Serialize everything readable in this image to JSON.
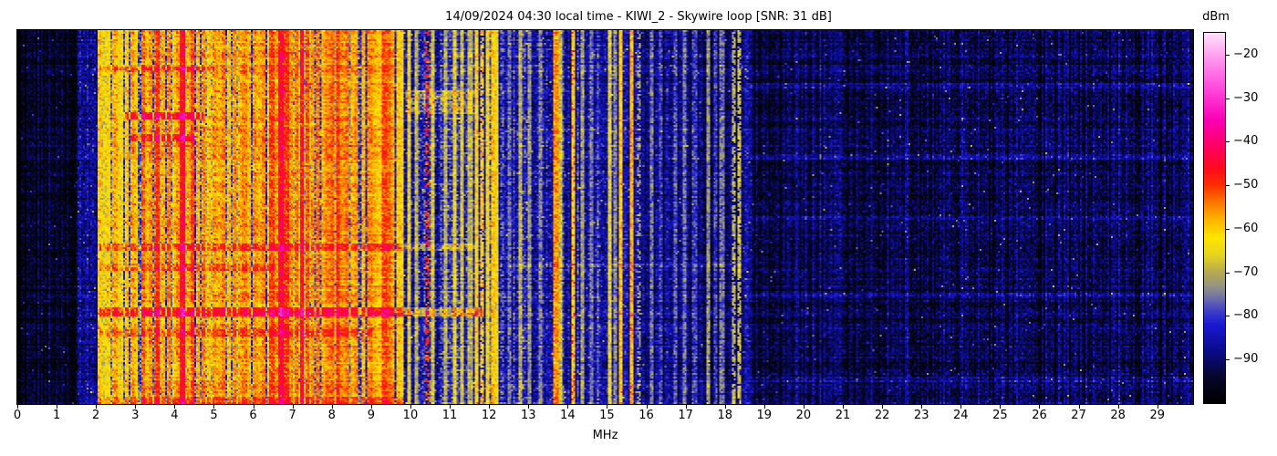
{
  "header": {
    "title": "14/09/2024 04:30 local time - KIWI_2 - Skywire loop [SNR: 31 dB]"
  },
  "x_axis": {
    "label": "MHz",
    "tick_values": [
      0,
      1,
      2,
      3,
      4,
      5,
      6,
      7,
      8,
      9,
      10,
      11,
      12,
      13,
      14,
      15,
      16,
      17,
      18,
      19,
      20,
      21,
      22,
      23,
      24,
      25,
      26,
      27,
      28,
      29
    ],
    "range_mhz": [
      0,
      29.91
    ]
  },
  "colorbar": {
    "unit_label": "dBm",
    "tick_values": [
      -20,
      -30,
      -40,
      -50,
      -60,
      -70,
      -80,
      -90
    ],
    "tick_labels": [
      "−20",
      "−30",
      "−40",
      "−50",
      "−60",
      "−70",
      "−80",
      "−90"
    ],
    "vmin": -100,
    "vmax": -15
  },
  "chart_data": {
    "type": "heatmap",
    "title": "14/09/2024 04:30 local time - KIWI_2 - Skywire loop [SNR: 31 dB]",
    "xlabel": "MHz",
    "value_unit": "dBm",
    "x_range_mhz": [
      0,
      29.91
    ],
    "value_range_dbm": [
      -100,
      -15
    ],
    "legend_position": "right-colorbar",
    "grid": false,
    "colormap": [
      [
        -100,
        "#000000"
      ],
      [
        -94,
        "#06062a"
      ],
      [
        -88,
        "#0a0a8c"
      ],
      [
        -82,
        "#1919d2"
      ],
      [
        -79,
        "#3c3cc8"
      ],
      [
        -76,
        "#6e6eaa"
      ],
      [
        -73,
        "#96967e"
      ],
      [
        -70,
        "#b4aa50"
      ],
      [
        -66,
        "#e6d41e"
      ],
      [
        -62,
        "#ffe600"
      ],
      [
        -58,
        "#ffb400"
      ],
      [
        -54,
        "#ff7800"
      ],
      [
        -50,
        "#ff2d00"
      ],
      [
        -46,
        "#ff0a1e"
      ],
      [
        -41,
        "#ff0064"
      ],
      [
        -35,
        "#fa00b4"
      ],
      [
        -28,
        "#ff46dc"
      ],
      [
        -21,
        "#ff96ee"
      ],
      [
        -15,
        "#ffe1fa"
      ]
    ],
    "noise_bands": [
      {
        "f0": 0.0,
        "f1": 1.52,
        "base": -96.0,
        "cell_sigma": 2.5,
        "stripe_prob": 0.02,
        "stripe_boost": 3
      },
      {
        "f0": 1.52,
        "f1": 2.04,
        "base": -87.5,
        "cell_sigma": 3.5,
        "stripe_prob": 0.05,
        "stripe_boost": 3
      },
      {
        "f0": 2.04,
        "f1": 8.7,
        "base": -77.5,
        "cell_sigma": 5.5,
        "stripe_prob": 0.3,
        "stripe_boost": 11
      },
      {
        "f0": 8.7,
        "f1": 9.8,
        "base": -80.0,
        "cell_sigma": 5.0,
        "stripe_prob": 0.22,
        "stripe_boost": 9
      },
      {
        "f0": 9.8,
        "f1": 12.1,
        "base": -84.0,
        "cell_sigma": 4.5,
        "stripe_prob": 0.07,
        "stripe_boost": 6
      },
      {
        "f0": 12.1,
        "f1": 15.5,
        "base": -86.5,
        "cell_sigma": 4.0,
        "stripe_prob": 0.04,
        "stripe_boost": 5
      },
      {
        "f0": 15.5,
        "f1": 18.6,
        "base": -88.5,
        "cell_sigma": 3.5,
        "stripe_prob": 0.03,
        "stripe_boost": 4
      },
      {
        "f0": 18.6,
        "f1": 29.92,
        "base": -92.0,
        "cell_sigma": 3.0,
        "stripe_prob": 0.015,
        "stripe_boost": 3
      }
    ],
    "signal_lines": [
      {
        "f": 2.07,
        "level": -60
      },
      {
        "f": 2.18,
        "level": -66
      },
      {
        "f": 2.31,
        "level": -62
      },
      {
        "f": 2.46,
        "level": -58
      },
      {
        "f": 2.6,
        "level": -64
      },
      {
        "f": 2.75,
        "level": -60
      },
      {
        "f": 2.88,
        "level": -57
      },
      {
        "f": 3.0,
        "level": -62
      },
      {
        "f": 3.16,
        "level": -53
      },
      {
        "f": 3.26,
        "level": -60
      },
      {
        "f": 3.38,
        "level": -56
      },
      {
        "f": 3.5,
        "level": -52
      },
      {
        "f": 3.55,
        "level": -50
      },
      {
        "f": 3.7,
        "level": -58
      },
      {
        "f": 3.82,
        "level": -55
      },
      {
        "f": 3.95,
        "level": -60
      },
      {
        "f": 4.07,
        "level": -56
      },
      {
        "f": 4.19,
        "level": -45,
        "w": 0.09
      },
      {
        "f": 4.32,
        "level": -57
      },
      {
        "f": 4.43,
        "level": -51
      },
      {
        "f": 4.58,
        "level": -58
      },
      {
        "f": 4.7,
        "level": -55
      },
      {
        "f": 4.85,
        "level": -60
      },
      {
        "f": 4.98,
        "level": -56
      },
      {
        "f": 5.1,
        "level": -58
      },
      {
        "f": 5.22,
        "level": -55
      },
      {
        "f": 5.35,
        "level": -60
      },
      {
        "f": 5.48,
        "level": -56
      },
      {
        "f": 5.62,
        "level": -58
      },
      {
        "f": 5.75,
        "level": -55
      },
      {
        "f": 5.88,
        "level": -60
      },
      {
        "f": 6.0,
        "level": -56
      },
      {
        "f": 6.12,
        "level": -58
      },
      {
        "f": 6.25,
        "level": -55
      },
      {
        "f": 6.37,
        "level": -60
      },
      {
        "f": 6.45,
        "level": -51
      },
      {
        "f": 6.58,
        "level": -56
      },
      {
        "f": 6.68,
        "level": -44
      },
      {
        "f": 6.82,
        "level": -50
      },
      {
        "f": 6.95,
        "level": -56
      },
      {
        "f": 7.08,
        "level": -54
      },
      {
        "f": 7.21,
        "level": -46,
        "w": 0.08
      },
      {
        "f": 7.35,
        "level": -52
      },
      {
        "f": 7.5,
        "level": -56
      },
      {
        "f": 7.62,
        "level": -54
      },
      {
        "f": 7.75,
        "level": -58
      },
      {
        "f": 7.88,
        "level": -55
      },
      {
        "f": 8.0,
        "level": -53
      },
      {
        "f": 8.12,
        "level": -50
      },
      {
        "f": 8.25,
        "level": -56
      },
      {
        "f": 8.38,
        "level": -54
      },
      {
        "f": 8.5,
        "level": -58
      },
      {
        "f": 8.62,
        "level": -56
      },
      {
        "f": 8.8,
        "level": -58
      },
      {
        "f": 8.95,
        "level": -55
      },
      {
        "f": 9.07,
        "level": -58
      },
      {
        "f": 9.18,
        "level": -60
      },
      {
        "f": 9.31,
        "level": -51,
        "w": 0.08
      },
      {
        "f": 9.42,
        "level": -53
      },
      {
        "f": 9.53,
        "level": -57
      },
      {
        "f": 9.66,
        "level": -60
      },
      {
        "f": 9.78,
        "level": -62
      },
      {
        "f": 9.95,
        "level": -66
      },
      {
        "f": 10.12,
        "level": -70
      },
      {
        "f": 10.4,
        "level": -50,
        "duty": 0.5
      },
      {
        "f": 10.56,
        "level": -68
      },
      {
        "f": 10.87,
        "level": -70
      },
      {
        "f": 11.09,
        "level": -66
      },
      {
        "f": 11.3,
        "level": -68
      },
      {
        "f": 11.5,
        "level": -70
      },
      {
        "f": 11.65,
        "level": -62
      },
      {
        "f": 11.8,
        "level": -60,
        "duty": 0.8
      },
      {
        "f": 11.94,
        "level": -64
      },
      {
        "f": 12.08,
        "level": -60
      },
      {
        "f": 12.16,
        "level": -64
      },
      {
        "f": 12.32,
        "level": -78,
        "duty": 0.7
      },
      {
        "f": 12.5,
        "level": -76
      },
      {
        "f": 12.78,
        "level": -70
      },
      {
        "f": 13.0,
        "level": -73
      },
      {
        "f": 13.28,
        "level": -75
      },
      {
        "f": 13.67,
        "level": -56,
        "w": 0.07
      },
      {
        "f": 13.78,
        "level": -68
      },
      {
        "f": 14.13,
        "level": -62,
        "w": 0.07
      },
      {
        "f": 14.13,
        "level": -50,
        "duty": 0.18
      },
      {
        "f": 14.35,
        "level": -72
      },
      {
        "f": 14.6,
        "level": -76
      },
      {
        "f": 15.04,
        "level": -66
      },
      {
        "f": 15.2,
        "level": -74
      },
      {
        "f": 15.34,
        "level": -60
      },
      {
        "f": 15.6,
        "level": -58
      },
      {
        "f": 15.8,
        "level": -72,
        "duty": 0.5
      },
      {
        "f": 16.1,
        "level": -76
      },
      {
        "f": 16.35,
        "level": -80
      },
      {
        "f": 16.73,
        "level": -78
      },
      {
        "f": 16.95,
        "level": -76
      },
      {
        "f": 17.2,
        "level": -80
      },
      {
        "f": 17.55,
        "level": -73
      },
      {
        "f": 17.72,
        "level": -80
      },
      {
        "f": 17.9,
        "level": -76
      },
      {
        "f": 18.2,
        "level": -70,
        "duty": 0.7
      },
      {
        "f": 18.35,
        "level": -68,
        "duty": 0.8
      },
      {
        "f": 22.6,
        "level": -86,
        "duty": 0.6
      },
      {
        "f": 25.4,
        "level": -87,
        "duty": 0.5
      }
    ],
    "time_streaks": [
      {
        "y0": 0.098,
        "y1": 0.107,
        "f0": 2.1,
        "f1": 5.0,
        "boost": 8
      },
      {
        "y0": 0.163,
        "y1": 0.224,
        "f0": 9.9,
        "f1": 11.6,
        "boost": 8
      },
      {
        "y0": 0.22,
        "y1": 0.235,
        "f0": 2.7,
        "f1": 4.7,
        "boost": 12
      },
      {
        "y0": 0.28,
        "y1": 0.295,
        "f0": 2.9,
        "f1": 4.5,
        "boost": 10
      },
      {
        "y0": 0.573,
        "y1": 0.59,
        "f0": 2.1,
        "f1": 11.6,
        "boost": 8
      },
      {
        "y0": 0.625,
        "y1": 0.64,
        "f0": 2.1,
        "f1": 6.5,
        "boost": 6
      },
      {
        "y0": 0.627,
        "y1": 0.634,
        "f0": 12.0,
        "f1": 18.5,
        "boost": 6
      },
      {
        "y0": 0.744,
        "y1": 0.763,
        "f0": 2.1,
        "f1": 11.8,
        "boost": 11
      },
      {
        "y0": 0.802,
        "y1": 0.817,
        "f0": 2.1,
        "f1": 9.0,
        "boost": 6
      },
      {
        "y0": 0.985,
        "y1": 1.0,
        "f0": 2.04,
        "f1": 9.8,
        "boost": 5
      },
      {
        "y0": 0.145,
        "y1": 0.152,
        "f0": 18.6,
        "f1": 29.9,
        "boost": 4.5
      },
      {
        "y0": 0.335,
        "y1": 0.342,
        "f0": 18.6,
        "f1": 29.9,
        "boost": 4
      },
      {
        "y0": 0.5,
        "y1": 0.507,
        "f0": 18.6,
        "f1": 29.9,
        "boost": 4
      },
      {
        "y0": 0.705,
        "y1": 0.712,
        "f0": 18.6,
        "f1": 29.9,
        "boost": 4.5
      },
      {
        "y0": 0.93,
        "y1": 0.937,
        "f0": 18.6,
        "f1": 29.9,
        "boost": 4.5
      }
    ]
  }
}
